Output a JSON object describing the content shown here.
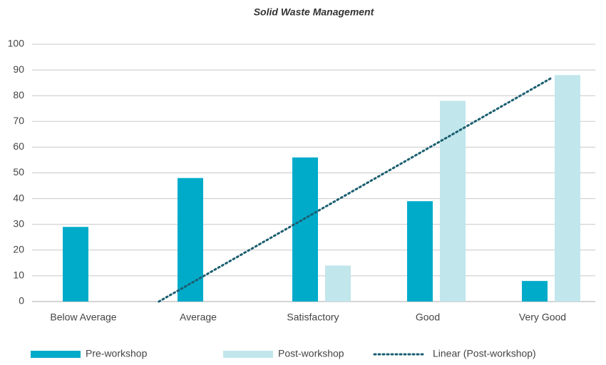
{
  "chart_data": {
    "type": "bar",
    "title": "Solid Waste Management",
    "categories": [
      "Below Average",
      "Average",
      "Satisfactory",
      "Good",
      "Very Good"
    ],
    "series": [
      {
        "name": "Pre-workshop",
        "color": "#00abc9",
        "values": [
          29,
          48,
          56,
          39,
          8
        ]
      },
      {
        "name": "Post-workshop",
        "color": "#c1e6ec",
        "values": [
          0,
          0,
          14,
          78,
          88
        ],
        "trendline": {
          "type": "linear",
          "name": "Linear (Post-workshop)",
          "color": "#1a5e6f"
        }
      }
    ],
    "ylim": [
      0,
      100
    ],
    "yticks": [
      0,
      10,
      20,
      30,
      40,
      50,
      60,
      70,
      80,
      90,
      100
    ],
    "grid": true,
    "legend": "bottom"
  }
}
